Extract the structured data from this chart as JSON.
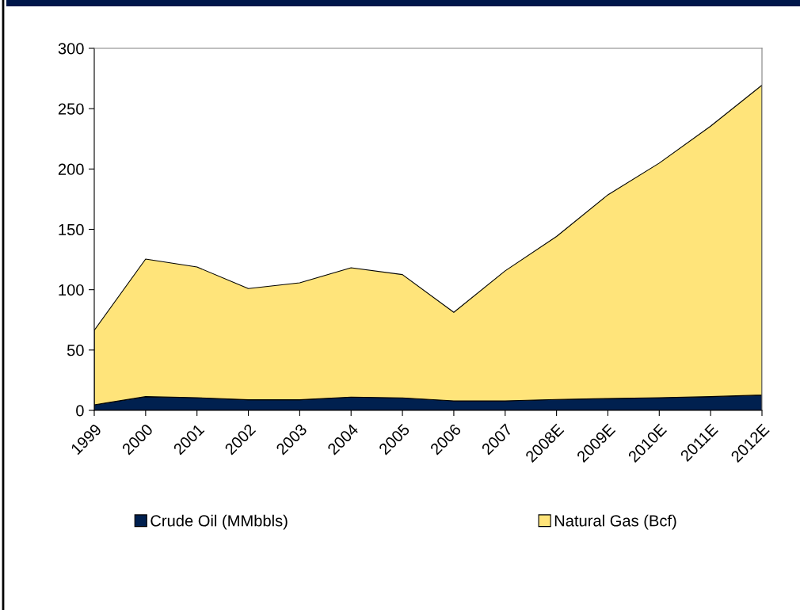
{
  "chart_data": {
    "type": "area",
    "stacked": true,
    "categories": [
      "1999",
      "2000",
      "2001",
      "2002",
      "2003",
      "2004",
      "2005",
      "2006",
      "2007",
      "2008E",
      "2009E",
      "2010E",
      "2011E",
      "2012E"
    ],
    "series": [
      {
        "name": "Crude Oil (MMbbls)",
        "color": "#00204f",
        "values": [
          4.6,
          11.4,
          10.5,
          8.8,
          8.8,
          11,
          10.3,
          7.9,
          7.9,
          9,
          9.8,
          10.5,
          11.4,
          12.7
        ]
      },
      {
        "name": "Natural Gas (Bcf)",
        "color": "#ffe47a",
        "values": [
          61.7,
          114,
          108.3,
          92.1,
          96.9,
          107.2,
          102.2,
          73.3,
          107.7,
          135.1,
          168.8,
          194.4,
          224.1,
          256.8
        ]
      }
    ],
    "ylim": [
      0,
      300
    ],
    "yticks": [
      0,
      50,
      100,
      150,
      200,
      250,
      300
    ],
    "grid": false,
    "legend": "bottom"
  }
}
